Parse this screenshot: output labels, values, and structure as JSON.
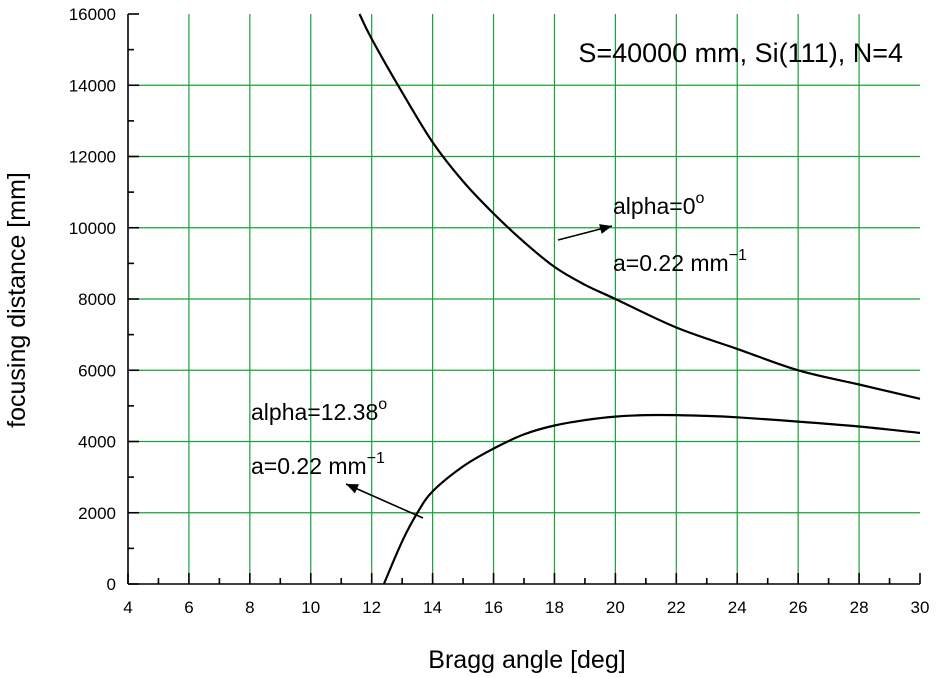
{
  "chart_data": {
    "type": "line",
    "title": "S=40000 mm, Si(111), N=4",
    "xlabel": "Bragg angle [deg]",
    "ylabel": "focusing distance [mm]",
    "xlim": [
      4,
      30
    ],
    "ylim": [
      0,
      16000
    ],
    "grid": true,
    "x_ticks": [
      4,
      6,
      8,
      10,
      12,
      14,
      16,
      18,
      20,
      22,
      24,
      26,
      28,
      30
    ],
    "y_ticks": [
      0,
      2000,
      4000,
      6000,
      8000,
      10000,
      12000,
      14000,
      16000
    ],
    "series": [
      {
        "x": [
          11.6,
          12,
          13,
          14,
          15,
          16,
          17,
          18,
          19,
          20,
          22,
          24,
          26,
          28,
          30
        ],
        "values": [
          16000,
          15300,
          13800,
          12400,
          11300,
          10400,
          9600,
          8900,
          8400,
          8000,
          7200,
          6600,
          6000,
          5600,
          5200
        ]
      },
      {
        "x": [
          12.4,
          13,
          13.5,
          14,
          15,
          16,
          17,
          18,
          19,
          20,
          21,
          22,
          23,
          24,
          26,
          28,
          30
        ],
        "values": [
          0,
          1200,
          2000,
          2600,
          3300,
          3800,
          4200,
          4450,
          4600,
          4700,
          4740,
          4740,
          4720,
          4680,
          4560,
          4420,
          4240
        ]
      }
    ],
    "annotations": [
      {
        "line1": "alpha=0",
        "deg": "o",
        "line2": "a=0.22 mm",
        "sup": "−1"
      },
      {
        "line1": "alpha=12.38",
        "deg": "o",
        "line2": "a=0.22 mm",
        "sup": "−1"
      }
    ]
  }
}
